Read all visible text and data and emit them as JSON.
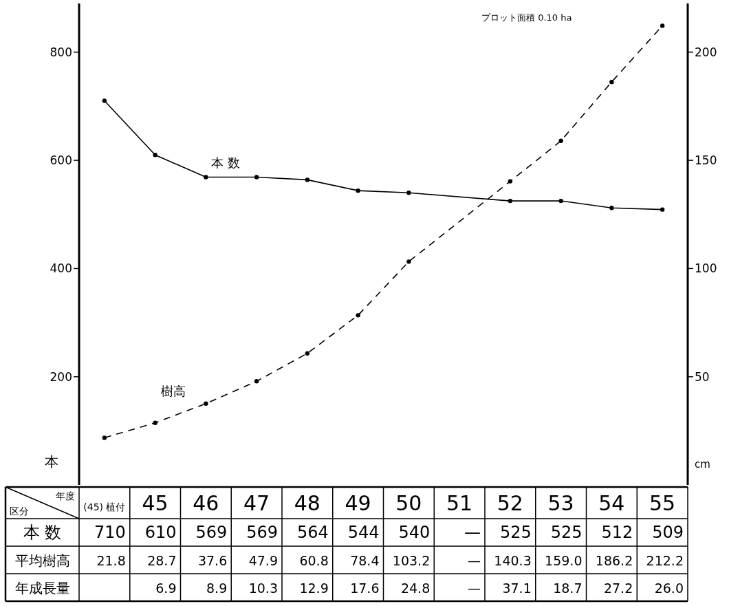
{
  "chart_data": [
    {
      "type": "line",
      "ylabel": "本",
      "y2label": "cm",
      "categories": [
        "(45) 植付",
        "45",
        "46",
        "47",
        "48",
        "49",
        "50",
        "51",
        "52",
        "53",
        "54",
        "55"
      ],
      "series": [
        {
          "name": "本 数",
          "color": "#000000",
          "line_style": "solid",
          "marker": "circle",
          "values": [
            710,
            610,
            569,
            569,
            564,
            544,
            540,
            null,
            525,
            525,
            512,
            509
          ],
          "value_labels": [
            "710",
            "610",
            "569",
            "569",
            "564",
            "544",
            "540",
            "—",
            "525",
            "525",
            "512",
            "509"
          ]
        },
        {
          "name": "樹高",
          "color": "#000000",
          "axis": "y2",
          "line_style": "dashed",
          "marker": "circle",
          "values": [
            21.8,
            28.7,
            37.6,
            47.9,
            60.8,
            78.4,
            103.2,
            null,
            140.3,
            159.0,
            186.2,
            212.2
          ],
          "value_labels": [
            "21.8",
            "28.7",
            "37.6",
            "47.9",
            "60.8",
            "78.4",
            "103.2",
            "—",
            "140.3",
            "159.0",
            "186.2",
            "212.2"
          ]
        }
      ],
      "ylim": [
        0,
        890
      ],
      "yticks": [
        200,
        400,
        600,
        800
      ],
      "y2lim": [
        0,
        222.5
      ],
      "y2ticks": [
        50,
        100,
        150,
        200
      ],
      "grid": false,
      "annotations": [
        "プロット面積 0.10 ha",
        "年度",
        "区分",
        "本 数",
        "平均樹高"
      ]
    },
    {
      "type": "other",
      "categories": [
        null,
        null,
        null,
        null,
        null,
        null,
        null,
        null,
        null,
        null,
        null,
        null
      ],
      "series": [
        {
          "name": "年成長量",
          "values": [
            null,
            6.9,
            8.9,
            10.3,
            12.9,
            17.6,
            24.8,
            null,
            37.1,
            18.7,
            27.2,
            26.0
          ],
          "value_labels": [
            null,
            "6.9",
            "8.9",
            "10.3",
            "12.9",
            "17.6",
            "24.8",
            "—",
            "37.1",
            "18.7",
            "27.2",
            "26.0"
          ]
        }
      ]
    }
  ]
}
